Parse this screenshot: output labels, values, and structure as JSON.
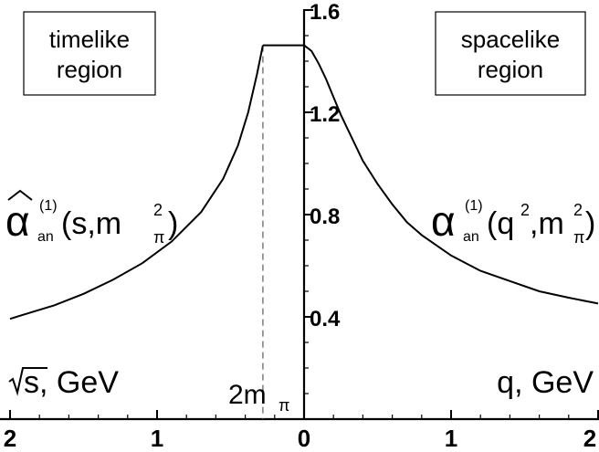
{
  "chart_data": {
    "type": "line",
    "x_ticks": [
      "2",
      "1",
      "0",
      "1",
      "2"
    ],
    "y_ticks": [
      "0.4",
      "0.8",
      "1.2",
      "1.6"
    ],
    "y_tick_values": [
      0.4,
      0.8,
      1.2,
      1.6
    ],
    "ylim": [
      0.0,
      1.6
    ],
    "timelike": {
      "box_line1": "timelike",
      "box_line2": "region",
      "axis_label": "s, GeV",
      "formula_main": "α",
      "formula_sup": "(1)",
      "formula_sub": "an",
      "formula_args": "(s,m",
      "formula_args_sup": "2",
      "formula_args_sub": "π",
      "formula_close": ")",
      "threshold_label": "2m",
      "threshold_sub": "π",
      "threshold_x": -0.28,
      "x_direction": "decreasing to the left",
      "curve": [
        [
          -0.28,
          1.462
        ],
        [
          -0.32,
          1.35
        ],
        [
          -0.38,
          1.2
        ],
        [
          -0.45,
          1.07
        ],
        [
          -0.55,
          0.94
        ],
        [
          -0.7,
          0.81
        ],
        [
          -0.9,
          0.695
        ],
        [
          -1.1,
          0.61
        ],
        [
          -1.3,
          0.545
        ],
        [
          -1.5,
          0.49
        ],
        [
          -1.7,
          0.445
        ],
        [
          -1.9,
          0.41
        ],
        [
          -2.0,
          0.392
        ]
      ],
      "plateau": [
        [
          -0.28,
          1.462
        ],
        [
          0.0,
          1.462
        ]
      ]
    },
    "spacelike": {
      "box_line1": "spacelike",
      "box_line2": "region",
      "axis_label": "q, GeV",
      "formula_main": "α",
      "formula_sup": "(1)",
      "formula_sub": "an",
      "formula_args": "(q",
      "formula_args_sup": "2",
      "formula_args_sep": ",m",
      "formula_args_sup2": "2",
      "formula_args_sub2": "π",
      "formula_close": ")",
      "curve": [
        [
          0.0,
          1.462
        ],
        [
          0.05,
          1.44
        ],
        [
          0.1,
          1.39
        ],
        [
          0.15,
          1.33
        ],
        [
          0.2,
          1.26
        ],
        [
          0.25,
          1.19
        ],
        [
          0.3,
          1.13
        ],
        [
          0.4,
          1.01
        ],
        [
          0.5,
          0.92
        ],
        [
          0.6,
          0.84
        ],
        [
          0.7,
          0.77
        ],
        [
          0.8,
          0.72
        ],
        [
          1.0,
          0.64
        ],
        [
          1.2,
          0.58
        ],
        [
          1.4,
          0.54
        ],
        [
          1.6,
          0.5
        ],
        [
          1.8,
          0.475
        ],
        [
          2.0,
          0.452
        ]
      ]
    }
  }
}
